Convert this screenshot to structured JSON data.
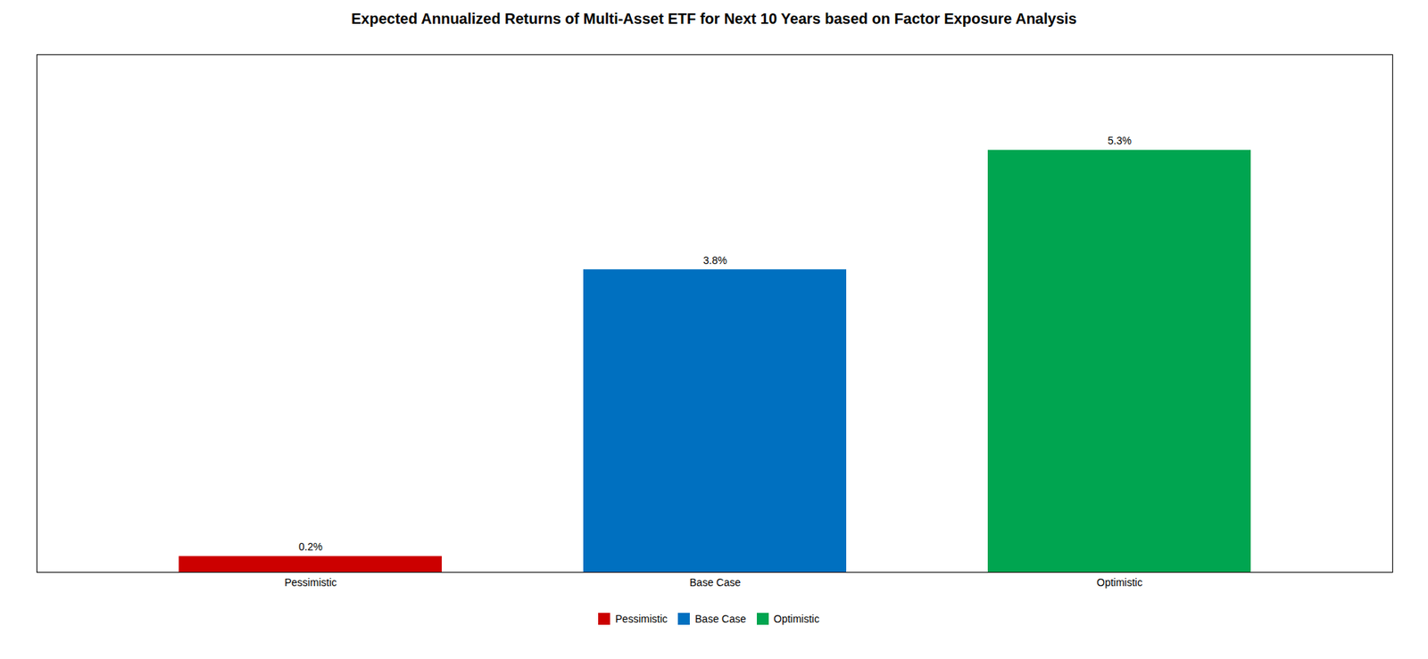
{
  "chart_data": {
    "type": "bar",
    "title": "Expected Annualized Returns of Multi-Asset ETF for Next 10 Years based on Factor Exposure Analysis",
    "categories": [
      "Pessimistic",
      "Base Case",
      "Optimistic"
    ],
    "values": [
      0.2,
      3.8,
      5.3
    ],
    "value_labels": [
      "0.2%",
      "3.8%",
      "5.3%"
    ],
    "colors": [
      "#cc0000",
      "#0070c0",
      "#00a550"
    ],
    "data_labels": true,
    "legend": "bottom",
    "ylim": [
      0,
      6.5
    ],
    "tick_labels": "x",
    "grid": false
  }
}
